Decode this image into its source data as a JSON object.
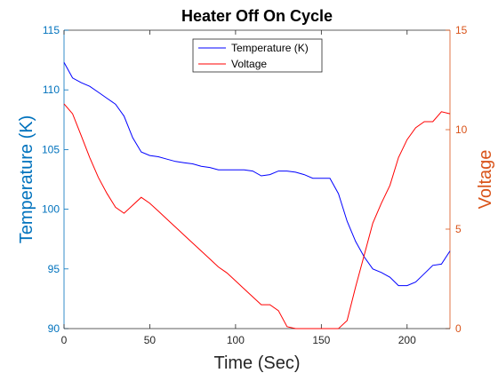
{
  "chart_data": {
    "type": "line",
    "title": "Heater Off On Cycle",
    "xlabel": "Time (Sec)",
    "ylabel_left": "Temperature (K)",
    "ylabel_right": "Voltage",
    "xlim": [
      0,
      225
    ],
    "ylim_left": [
      90,
      115
    ],
    "ylim_right": [
      0,
      15
    ],
    "x_ticks": [
      0,
      50,
      100,
      150,
      200
    ],
    "y_ticks_left": [
      90,
      95,
      100,
      105,
      110,
      115
    ],
    "y_ticks_right": [
      0,
      5,
      10,
      15
    ],
    "legend_position": "top-center",
    "grid": false,
    "colors": {
      "left_axis": "#0072BD",
      "right_axis": "#D95319",
      "temperature": "#0000FF",
      "voltage": "#FF0000"
    },
    "series": [
      {
        "name": "Temperature (K)",
        "axis": "left",
        "x": [
          0,
          5,
          10,
          15,
          20,
          25,
          30,
          35,
          40,
          45,
          50,
          55,
          60,
          65,
          70,
          75,
          80,
          85,
          90,
          95,
          100,
          105,
          110,
          115,
          120,
          125,
          130,
          135,
          140,
          145,
          150,
          155,
          160,
          165,
          170,
          175,
          180,
          185,
          190,
          195,
          200,
          205,
          210,
          215,
          220,
          225
        ],
        "y": [
          112.3,
          111.0,
          110.6,
          110.3,
          109.8,
          109.3,
          108.8,
          107.8,
          106.0,
          104.8,
          104.5,
          104.4,
          104.2,
          104.0,
          103.9,
          103.8,
          103.6,
          103.5,
          103.3,
          103.3,
          103.3,
          103.3,
          103.2,
          102.8,
          102.9,
          103.2,
          103.2,
          103.1,
          102.9,
          102.6,
          102.6,
          102.6,
          101.3,
          99.0,
          97.3,
          96.0,
          95.0,
          94.7,
          94.3,
          93.6,
          93.6,
          93.9,
          94.6,
          95.3,
          95.4,
          96.5
        ]
      },
      {
        "name": "Voltage",
        "axis": "right",
        "x": [
          0,
          5,
          10,
          15,
          20,
          25,
          30,
          35,
          40,
          45,
          50,
          55,
          60,
          65,
          70,
          75,
          80,
          85,
          90,
          95,
          100,
          105,
          110,
          115,
          120,
          125,
          130,
          135,
          140,
          145,
          150,
          155,
          160,
          165,
          170,
          175,
          180,
          185,
          190,
          195,
          200,
          205,
          210,
          215,
          220,
          225
        ],
        "y": [
          11.3,
          10.8,
          9.7,
          8.6,
          7.6,
          6.8,
          6.1,
          5.8,
          6.2,
          6.6,
          6.3,
          5.9,
          5.5,
          5.1,
          4.7,
          4.3,
          3.9,
          3.5,
          3.1,
          2.8,
          2.4,
          2.0,
          1.6,
          1.2,
          1.2,
          0.9,
          0.1,
          0.0,
          0.0,
          0.0,
          0.0,
          0.0,
          0.0,
          0.4,
          2.1,
          3.7,
          5.3,
          6.3,
          7.2,
          8.6,
          9.5,
          10.1,
          10.4,
          10.4,
          10.9,
          10.8
        ]
      }
    ]
  }
}
